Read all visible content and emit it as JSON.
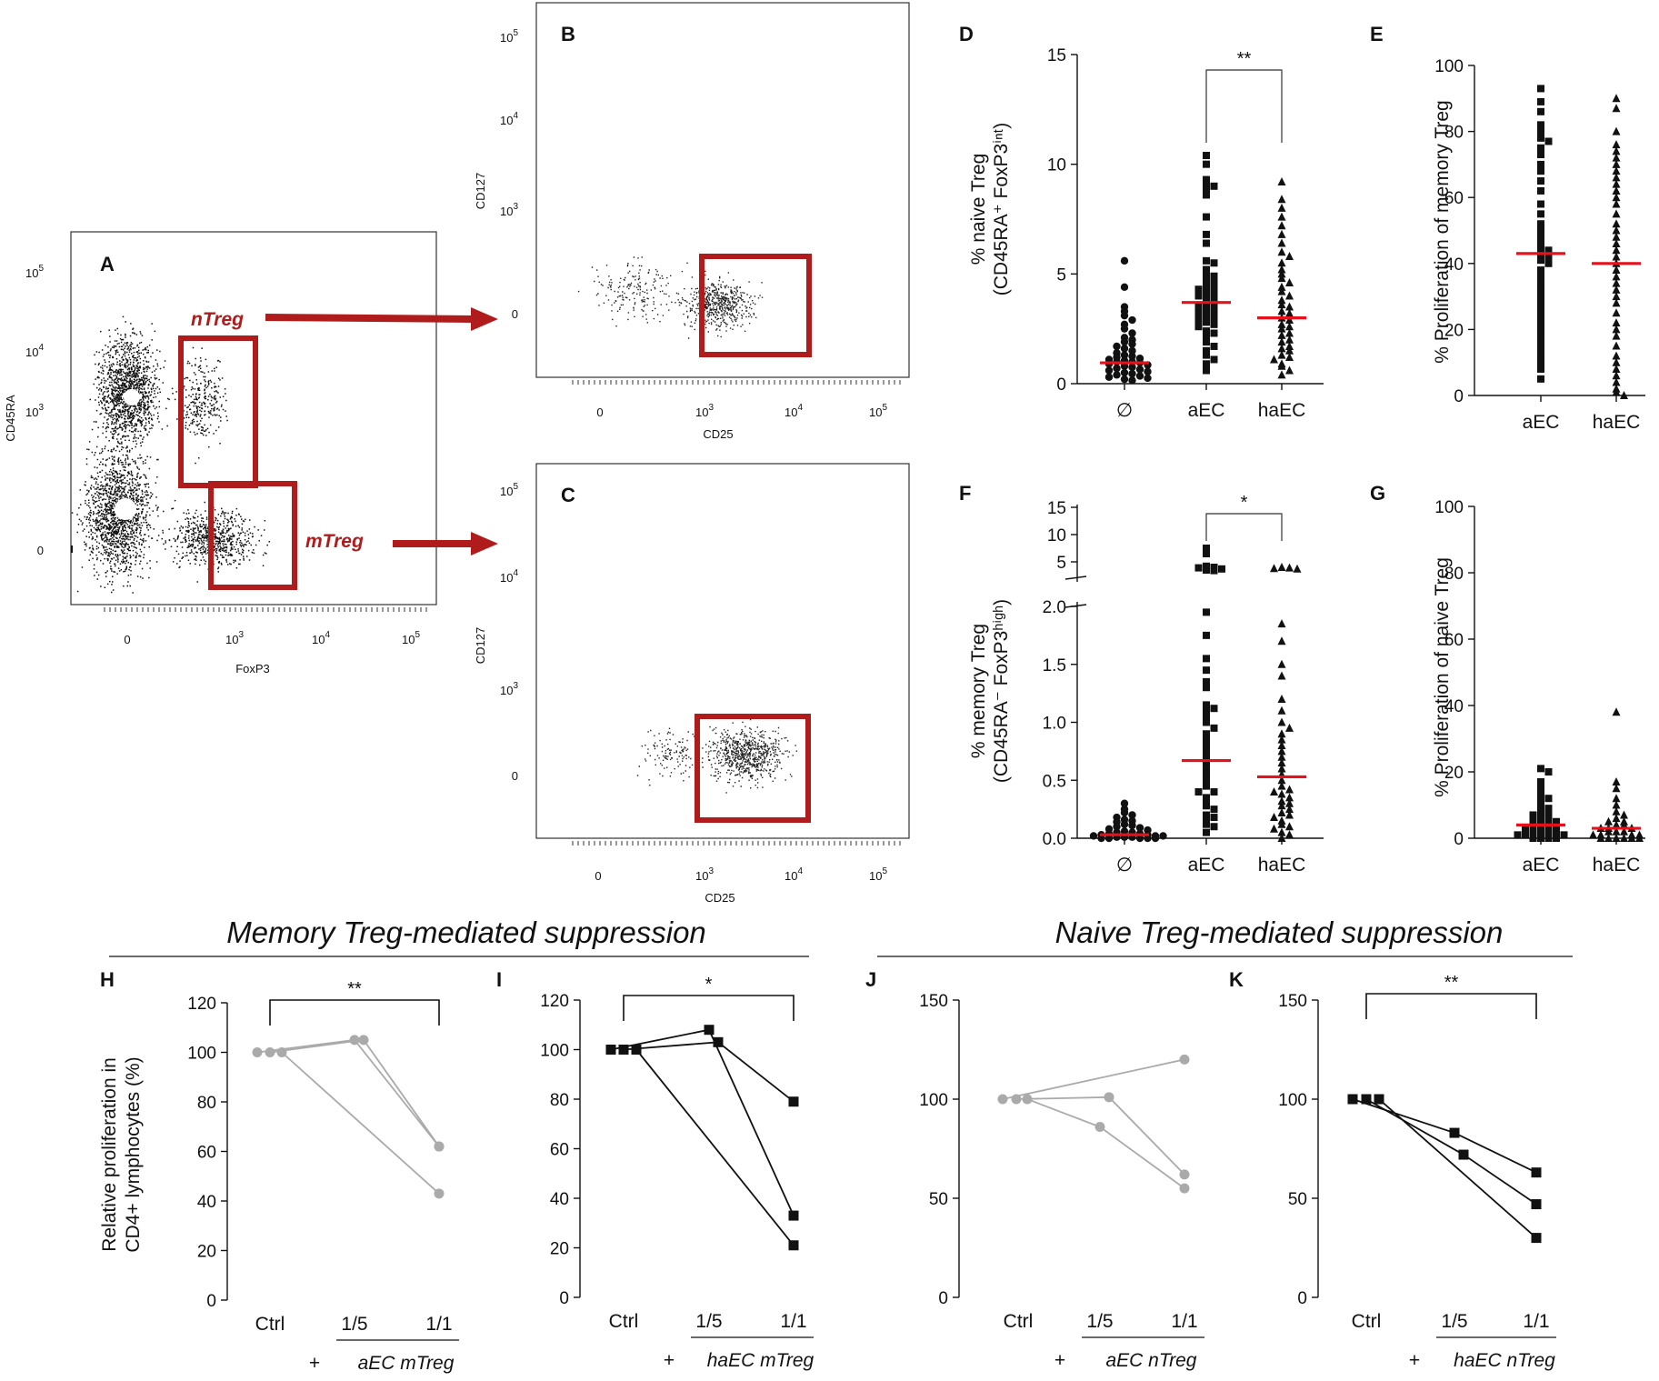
{
  "section_titles": {
    "memory": "Memory Treg-mediated suppression",
    "naive": "Naive Treg-mediated suppression"
  },
  "chart_data": [
    {
      "panel": "A",
      "type": "scatter",
      "kind": "flow-cytometry-density",
      "xlabel": "FoxP3",
      "ylabel": "CD45RA",
      "xticks": [
        "0",
        "10^3",
        "10^4",
        "10^5"
      ],
      "yticks": [
        "0",
        "10^3",
        "10^4",
        "10^5"
      ],
      "gates": [
        {
          "name": "nTreg"
        },
        {
          "name": "mTreg"
        }
      ],
      "annotations": [
        "nTreg gate → panel B",
        "mTreg gate → panel C"
      ]
    },
    {
      "panel": "B",
      "type": "scatter",
      "kind": "flow-cytometry",
      "xlabel": "CD25",
      "ylabel": "CD127",
      "xticks": [
        "0",
        "10^3",
        "10^4",
        "10^5"
      ],
      "yticks": [
        "0",
        "10^3",
        "10^4",
        "10^5"
      ]
    },
    {
      "panel": "C",
      "type": "scatter",
      "kind": "flow-cytometry",
      "xlabel": "CD25",
      "ylabel": "CD127",
      "xticks": [
        "0",
        "10^3",
        "10^4",
        "10^5"
      ],
      "yticks": [
        "0",
        "10^3",
        "10^4",
        "10^5"
      ]
    },
    {
      "panel": "D",
      "type": "scatter",
      "kind": "dot-plot-with-median",
      "ylabel_line1": "% naive Treg",
      "ylabel_line2": "(CD45RA⁺ FoxP3ⁱⁿᵗ)",
      "ylim": [
        0,
        15
      ],
      "yticks": [
        0,
        5,
        10,
        15
      ],
      "categories": [
        "∅",
        "aEC",
        "haEC"
      ],
      "medians": [
        0.95,
        3.7,
        3.0
      ],
      "significance": {
        "between": [
          "aEC",
          "haEC"
        ],
        "label": "**"
      },
      "points": [
        [
          5.6,
          4.4,
          3.5,
          3.3,
          3.1,
          2.9,
          2.7,
          2.5,
          2.3,
          2.1,
          2.0,
          1.9,
          1.8,
          1.7,
          1.6,
          1.5,
          1.4,
          1.3,
          1.25,
          1.2,
          1.15,
          1.1,
          1.05,
          1.0,
          1.0,
          0.95,
          0.9,
          0.85,
          0.8,
          0.75,
          0.7,
          0.65,
          0.6,
          0.55,
          0.5,
          0.45,
          0.4,
          0.35,
          0.3,
          0.25,
          0.2,
          0.15
        ],
        [
          10.4,
          10.0,
          9.3,
          9.0,
          9.0,
          8.9,
          8.6,
          7.6,
          6.8,
          6.4,
          5.6,
          5.5,
          5.2,
          5.0,
          4.9,
          4.8,
          4.6,
          4.5,
          4.4,
          4.3,
          4.2,
          4.1,
          4.0,
          3.9,
          3.8,
          3.7,
          3.6,
          3.5,
          3.4,
          3.3,
          3.2,
          3.1,
          3.0,
          2.9,
          2.8,
          2.7,
          2.6,
          2.4,
          2.3,
          2.1,
          1.9,
          1.7,
          1.5,
          1.3,
          1.1,
          0.9,
          0.6
        ],
        [
          9.2,
          8.4,
          8.0,
          7.6,
          7.2,
          6.8,
          6.4,
          6.0,
          5.8,
          5.5,
          5.2,
          5.0,
          4.8,
          4.6,
          4.4,
          4.2,
          4.0,
          3.8,
          3.6,
          3.5,
          3.3,
          3.2,
          3.0,
          2.9,
          2.7,
          2.6,
          2.5,
          2.3,
          2.2,
          2.0,
          1.9,
          1.7,
          1.6,
          1.5,
          1.3,
          1.2,
          1.1,
          0.9,
          0.8,
          0.6,
          0.4
        ]
      ]
    },
    {
      "panel": "E",
      "type": "scatter",
      "kind": "dot-plot-with-median",
      "ylabel": "% Proliferation of  memory Treg",
      "ylim": [
        0,
        100
      ],
      "yticks": [
        0,
        20,
        40,
        60,
        80,
        100
      ],
      "categories": [
        "aEC",
        "haEC"
      ],
      "medians": [
        43,
        40
      ],
      "points": [
        [
          93,
          89,
          86,
          82,
          80,
          78,
          77,
          75,
          73,
          70,
          68,
          65,
          62,
          58,
          55,
          52,
          50,
          48,
          46,
          45,
          44,
          43,
          42,
          41,
          40,
          38,
          36,
          34,
          32,
          30,
          28,
          26,
          24,
          22,
          20,
          18,
          16,
          14,
          12,
          10,
          8,
          5
        ],
        [
          90,
          87,
          80,
          76,
          74,
          72,
          70,
          68,
          66,
          64,
          62,
          60,
          58,
          55,
          52,
          50,
          48,
          46,
          44,
          42,
          40,
          38,
          36,
          34,
          32,
          30,
          28,
          25,
          22,
          20,
          18,
          15,
          12,
          10,
          8,
          6,
          4,
          2,
          1,
          0
        ]
      ]
    },
    {
      "panel": "F",
      "type": "scatter",
      "kind": "dot-plot-with-median-broken-axis",
      "ylabel_line1": "% memory Treg",
      "ylabel_line2": "(CD45RA⁻ FoxP3ʰⁱᵍʰ)",
      "yticks_lower": [
        "0.0",
        "0.5",
        "1.0",
        "1.5",
        "2.0"
      ],
      "yticks_upper": [
        "5",
        "10",
        "15"
      ],
      "ylim_lower": [
        0,
        2.0
      ],
      "ylim_upper": [
        3,
        15
      ],
      "categories": [
        "∅",
        "aEC",
        "haEC"
      ],
      "medians": [
        0.03,
        0.67,
        0.53
      ],
      "significance": {
        "between": [
          "aEC",
          "haEC"
        ],
        "label": "*"
      },
      "points": [
        [
          0.3,
          0.25,
          0.22,
          0.2,
          0.18,
          0.16,
          0.15,
          0.14,
          0.12,
          0.11,
          0.1,
          0.09,
          0.08,
          0.07,
          0.06,
          0.05,
          0.05,
          0.04,
          0.04,
          0.03,
          0.03,
          0.02,
          0.02,
          0.02,
          0.01,
          0.01,
          0.01,
          0.0,
          0.0,
          0.0,
          0.0,
          0.0
        ],
        [
          7.5,
          6.5,
          4.2,
          4.0,
          3.9,
          3.7,
          3.5,
          3.4,
          1.95,
          1.75,
          1.55,
          1.45,
          1.35,
          1.3,
          1.15,
          1.12,
          1.1,
          1.05,
          1.0,
          0.95,
          0.9,
          0.85,
          0.8,
          0.75,
          0.7,
          0.65,
          0.6,
          0.55,
          0.5,
          0.45,
          0.4,
          0.4,
          0.35,
          0.3,
          0.28,
          0.25,
          0.2,
          0.18,
          0.15,
          0.12,
          0.1,
          0.05
        ],
        [
          4.0,
          3.9,
          3.8,
          3.7,
          1.85,
          1.7,
          1.5,
          1.4,
          1.2,
          1.1,
          1.0,
          0.95,
          0.9,
          0.85,
          0.8,
          0.75,
          0.7,
          0.65,
          0.6,
          0.55,
          0.5,
          0.45,
          0.42,
          0.4,
          0.38,
          0.35,
          0.32,
          0.3,
          0.28,
          0.25,
          0.22,
          0.2,
          0.18,
          0.15,
          0.12,
          0.1,
          0.08,
          0.05,
          0.03,
          0.0
        ]
      ]
    },
    {
      "panel": "G",
      "type": "scatter",
      "kind": "dot-plot-with-median",
      "ylabel": "% Proliferation of naive Treg",
      "ylim": [
        0,
        100
      ],
      "yticks": [
        0,
        20,
        40,
        60,
        80,
        100
      ],
      "categories": [
        "aEC",
        "haEC"
      ],
      "medians": [
        4,
        3
      ],
      "points": [
        [
          21,
          20,
          17,
          15,
          13,
          12,
          11,
          10,
          9,
          8,
          8,
          7,
          6,
          6,
          5,
          5,
          4,
          4,
          3,
          3,
          3,
          2,
          2,
          2,
          1,
          1,
          1,
          1,
          0,
          0,
          0,
          0
        ],
        [
          38,
          17,
          15,
          12,
          10,
          8,
          7,
          6,
          5,
          5,
          4,
          4,
          3,
          3,
          3,
          2,
          2,
          2,
          1,
          1,
          1,
          1,
          0,
          0,
          0,
          0,
          0,
          0
        ]
      ]
    },
    {
      "panel": "H",
      "type": "line",
      "group": "memory",
      "ylabel_line1": "Relative proliferation in",
      "ylabel_line2": "CD4+ lymphocytes (%)",
      "ylim": [
        0,
        120
      ],
      "yticks": [
        0,
        20,
        40,
        60,
        80,
        100,
        120
      ],
      "categories": [
        "Ctrl",
        "1/5",
        "1/1"
      ],
      "sublabel_plus": "+",
      "sublabel": "aEC mTreg",
      "marker": "circle",
      "color": "#aaaaaa",
      "significance": {
        "label": "**"
      },
      "series": [
        {
          "values": [
            100,
            105,
            62
          ]
        },
        {
          "values": [
            100,
            105,
            62
          ]
        },
        {
          "values": [
            100,
            null,
            43
          ]
        }
      ]
    },
    {
      "panel": "I",
      "type": "line",
      "group": "memory",
      "ylim": [
        0,
        120
      ],
      "yticks": [
        0,
        20,
        40,
        60,
        80,
        100,
        120
      ],
      "categories": [
        "Ctrl",
        "1/5",
        "1/1"
      ],
      "sublabel_plus": "+",
      "sublabel": "haEC mTreg",
      "marker": "square",
      "color": "#111111",
      "significance": {
        "label": "*"
      },
      "series": [
        {
          "values": [
            100,
            108,
            33
          ]
        },
        {
          "values": [
            100,
            103,
            79
          ]
        },
        {
          "values": [
            100,
            null,
            21
          ]
        }
      ]
    },
    {
      "panel": "J",
      "type": "line",
      "group": "naive",
      "ylim": [
        0,
        150
      ],
      "yticks": [
        0,
        50,
        100,
        150
      ],
      "categories": [
        "Ctrl",
        "1/5",
        "1/1"
      ],
      "sublabel_plus": "+",
      "sublabel": "aEC nTreg",
      "marker": "circle",
      "color": "#aaaaaa",
      "series": [
        {
          "values": [
            100,
            null,
            120
          ]
        },
        {
          "values": [
            100,
            101,
            62
          ]
        },
        {
          "values": [
            100,
            86,
            55
          ]
        }
      ]
    },
    {
      "panel": "K",
      "type": "line",
      "group": "naive",
      "ylim": [
        0,
        150
      ],
      "yticks": [
        0,
        50,
        100,
        150
      ],
      "categories": [
        "Ctrl",
        "1/5",
        "1/1"
      ],
      "sublabel_plus": "+",
      "sublabel": "haEC nTreg",
      "marker": "square",
      "color": "#111111",
      "significance": {
        "label": "**"
      },
      "series": [
        {
          "values": [
            100,
            83,
            63
          ]
        },
        {
          "values": [
            100,
            72,
            47
          ]
        },
        {
          "values": [
            100,
            null,
            30
          ]
        }
      ]
    }
  ],
  "colors": {
    "gate": "#b01c1c",
    "median": "#e8111b",
    "gray": "#aaaaaa",
    "black": "#111111"
  }
}
